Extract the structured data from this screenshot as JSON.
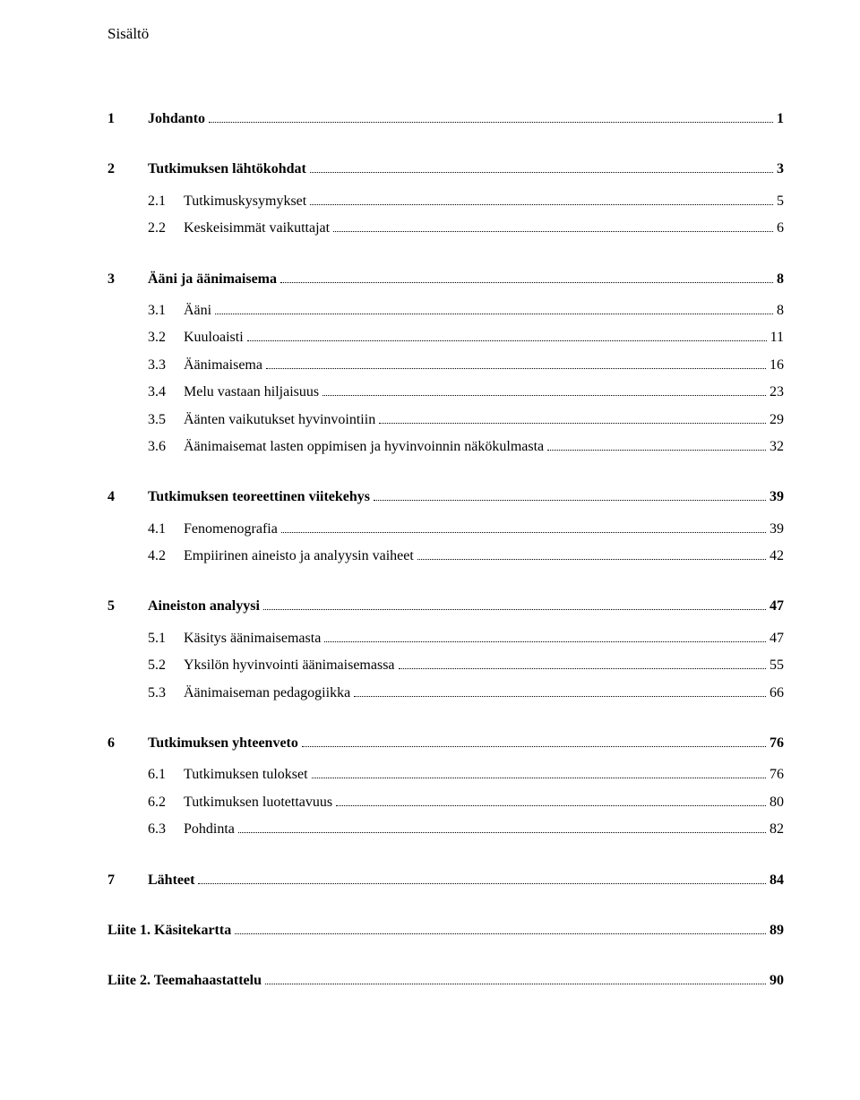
{
  "title": "Sisältö",
  "entries": [
    {
      "num": "1",
      "label": "Johdanto",
      "page": "1",
      "bold": true,
      "level": 0,
      "gap": true
    },
    {
      "num": "2",
      "label": "Tutkimuksen lähtökohdat",
      "page": "3",
      "bold": true,
      "level": 0,
      "gap": true
    },
    {
      "num": "2.1",
      "label": "Tutkimuskysymykset",
      "page": "5",
      "bold": false,
      "level": 1,
      "gap": false,
      "smallgap": true
    },
    {
      "num": "2.2",
      "label": "Keskeisimmät vaikuttajat",
      "page": "6",
      "bold": false,
      "level": 1,
      "gap": false
    },
    {
      "num": "3",
      "label": "Ääni ja äänimaisema",
      "page": "8",
      "bold": true,
      "level": 0,
      "gap": true
    },
    {
      "num": "3.1",
      "label": "Ääni",
      "page": "8",
      "bold": false,
      "level": 1,
      "gap": false,
      "smallgap": true
    },
    {
      "num": "3.2",
      "label": "Kuuloaisti",
      "page": "11",
      "bold": false,
      "level": 1,
      "gap": false
    },
    {
      "num": "3.3",
      "label": "Äänimaisema",
      "page": "16",
      "bold": false,
      "level": 1,
      "gap": false
    },
    {
      "num": "3.4",
      "label": "Melu vastaan hiljaisuus",
      "page": "23",
      "bold": false,
      "level": 1,
      "gap": false
    },
    {
      "num": "3.5",
      "label": "Äänten vaikutukset hyvinvointiin",
      "page": "29",
      "bold": false,
      "level": 1,
      "gap": false
    },
    {
      "num": "3.6",
      "label": "Äänimaisemat lasten oppimisen ja hyvinvoinnin näkökulmasta",
      "page": "32",
      "bold": false,
      "level": 1,
      "gap": false
    },
    {
      "num": "4",
      "label": "Tutkimuksen teoreettinen viitekehys",
      "page": "39",
      "bold": true,
      "level": 0,
      "gap": true
    },
    {
      "num": "4.1",
      "label": "Fenomenografia",
      "page": "39",
      "bold": false,
      "level": 1,
      "gap": false,
      "smallgap": true
    },
    {
      "num": "4.2",
      "label": "Empiirinen aineisto ja analyysin vaiheet",
      "page": "42",
      "bold": false,
      "level": 1,
      "gap": false
    },
    {
      "num": "5",
      "label": "Aineiston analyysi",
      "page": "47",
      "bold": true,
      "level": 0,
      "gap": true
    },
    {
      "num": "5.1",
      "label": "Käsitys äänimaisemasta",
      "page": "47",
      "bold": false,
      "level": 1,
      "gap": false,
      "smallgap": true
    },
    {
      "num": "5.2",
      "label": "Yksilön hyvinvointi äänimaisemassa",
      "page": "55",
      "bold": false,
      "level": 1,
      "gap": false
    },
    {
      "num": "5.3",
      "label": "Äänimaiseman pedagogiikka",
      "page": "66",
      "bold": false,
      "level": 1,
      "gap": false
    },
    {
      "num": "6",
      "label": "Tutkimuksen yhteenveto",
      "page": "76",
      "bold": true,
      "level": 0,
      "gap": true
    },
    {
      "num": "6.1",
      "label": "Tutkimuksen tulokset",
      "page": "76",
      "bold": false,
      "level": 1,
      "gap": false,
      "smallgap": true
    },
    {
      "num": "6.2",
      "label": "Tutkimuksen luotettavuus",
      "page": "80",
      "bold": false,
      "level": 1,
      "gap": false
    },
    {
      "num": "6.3",
      "label": "Pohdinta",
      "page": "82",
      "bold": false,
      "level": 1,
      "gap": false
    },
    {
      "num": "7",
      "label": "Lähteet",
      "page": "84",
      "bold": true,
      "level": 0,
      "gap": true
    },
    {
      "num": "",
      "label": "Liite 1. Käsitekartta",
      "page": "89",
      "bold": true,
      "level": 0,
      "gap": true,
      "nonum": true
    },
    {
      "num": "",
      "label": "Liite 2. Teemahaastattelu",
      "page": "90",
      "bold": true,
      "level": 0,
      "gap": true,
      "nonum": true
    }
  ]
}
